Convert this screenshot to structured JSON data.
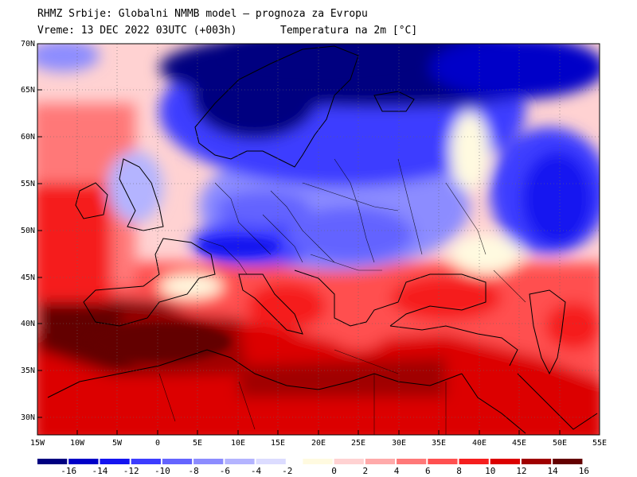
{
  "header": {
    "line1": "RHMZ Srbije: Globalni NMMB model – prognoza za Evropu",
    "line2": "Vreme: 13 DEC 2022 03UTC (+003h)",
    "line3": "Temperatura na 2m [°C]"
  },
  "map": {
    "lat_labels": [
      "70N",
      "65N",
      "60N",
      "55N",
      "50N",
      "45N",
      "40N",
      "35N",
      "30N"
    ],
    "lon_labels": [
      "15W",
      "10W",
      "5W",
      "0",
      "5E",
      "10E",
      "15E",
      "20E",
      "25E",
      "30E",
      "35E",
      "40E",
      "45E",
      "50E",
      "55E"
    ]
  },
  "colorbar": {
    "labels": [
      "-16",
      "-14",
      "-12",
      "-10",
      "-8",
      "-6",
      "-4",
      "-2",
      "0",
      "2",
      "4",
      "6",
      "8",
      "10",
      "12",
      "14",
      "16"
    ],
    "colors": [
      "#000080",
      "#0000c8",
      "#1414f0",
      "#3c3cff",
      "#6464ff",
      "#8c8cff",
      "#b4b4ff",
      "#dcdcff",
      "#fffae0",
      "#ffd2d2",
      "#ffaaaa",
      "#ff7878",
      "#ff5050",
      "#f51e1e",
      "#dc0000",
      "#a00000",
      "#640000"
    ]
  }
}
